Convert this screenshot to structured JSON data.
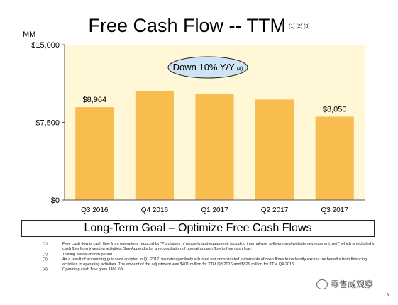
{
  "title": "Free Cash Flow -- TTM",
  "title_notes": "(1) (2) (3)",
  "chart_data": {
    "type": "bar",
    "ylabel": "MM",
    "categories": [
      "Q3 2016",
      "Q4 2016",
      "Q1 2017",
      "Q2 2017",
      "Q3 2017"
    ],
    "values": [
      8964,
      10500,
      10200,
      9700,
      8050
    ],
    "value_labels": [
      "$8,964",
      "",
      "",
      "",
      "$8,050"
    ],
    "ylim": [
      0,
      15000
    ],
    "yticks": [
      {
        "value": 0,
        "label": "$0"
      },
      {
        "value": 7500,
        "label": "$7,500"
      },
      {
        "value": 15000,
        "label": "$15,000"
      }
    ],
    "grid": false,
    "plot_background": "#fff7d6",
    "bar_color": "#f9bc4e",
    "annotation": {
      "text": "Down 10% Y/Y",
      "note": "(4)",
      "fill": "#cfe4f2"
    }
  },
  "goal": "Long-Term Goal – Optimize Free Cash Flows",
  "footnotes": [
    {
      "num": "(1)",
      "text": "Free cash flow is cash flow from operations reduced by “Purchases of property and equipment, including internal-use software and website development, net,” which is included in cash flow from investing activities. See Appendix for a reconciliation of operating cash flow to free cash flow."
    },
    {
      "num": "(2)",
      "text": "Trailing twelve-month period."
    },
    {
      "num": "(3)",
      "text": "As a result of accounting guidance adopted in Q1 2017, we retrospectively adjusted our consolidated statements of cash flows to reclassify excess tax benefits from financing activities to operating activities. The amount of the adjustment was $401 million for TTM Q3 2016 and $829 million for TTM Q4 2016."
    },
    {
      "num": "(4)",
      "text": "Operating cash flow grew 14% Y/Y."
    }
  ],
  "watermark": "零售威观察",
  "page_number": "3"
}
